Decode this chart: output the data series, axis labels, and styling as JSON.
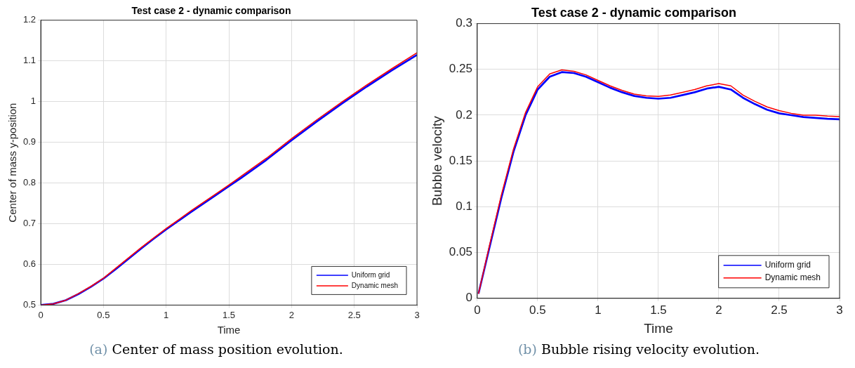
{
  "chart_data": [
    {
      "type": "line",
      "title": "Test case 2 - dynamic comparison",
      "xlabel": "Time",
      "ylabel": "Center of mass y-position",
      "annotations": [
        "(a) Center of mass position evolution."
      ],
      "xlim": [
        0,
        3
      ],
      "xticks": [
        0,
        0.5,
        1,
        1.5,
        2,
        2.5,
        3
      ],
      "ylim": [
        0.5,
        1.2
      ],
      "yticks": [
        0.5,
        0.6,
        0.7,
        0.8,
        0.9,
        1,
        1.1,
        1.2
      ],
      "grid": true,
      "legend": "bottom right",
      "marker": "none",
      "line_style": "solid",
      "x": [
        0,
        0.1,
        0.2,
        0.3,
        0.4,
        0.5,
        0.6,
        0.7,
        0.8,
        0.9,
        1,
        1.2,
        1.4,
        1.5,
        1.6,
        1.8,
        2,
        2.2,
        2.4,
        2.5,
        2.6,
        2.8,
        3
      ],
      "series": [
        {
          "name": "Uniform grid",
          "color": "#0000ff",
          "values": [
            0.5,
            0.503,
            0.512,
            0.527,
            0.545,
            0.565,
            0.589,
            0.614,
            0.639,
            0.663,
            0.686,
            0.729,
            0.771,
            0.792,
            0.813,
            0.857,
            0.905,
            0.951,
            0.995,
            1.016,
            1.037,
            1.077,
            1.115
          ]
        },
        {
          "name": "Dynamic mesh",
          "color": "#ff0000",
          "values": [
            0.5,
            0.503,
            0.512,
            0.528,
            0.546,
            0.566,
            0.591,
            0.616,
            0.641,
            0.665,
            0.688,
            0.732,
            0.774,
            0.795,
            0.817,
            0.861,
            0.909,
            0.955,
            0.999,
            1.02,
            1.041,
            1.081,
            1.12
          ]
        }
      ]
    },
    {
      "type": "line",
      "title": "Test case 2 - dynamic comparison",
      "xlabel": "Time",
      "ylabel": "Bubble velocity",
      "annotations": [
        "(b) Bubble rising velocity evolution."
      ],
      "xlim": [
        0,
        3
      ],
      "xticks": [
        0,
        0.5,
        1,
        1.5,
        2,
        2.5,
        3
      ],
      "ylim": [
        0,
        0.3
      ],
      "yticks": [
        0,
        0.05,
        0.1,
        0.15,
        0.2,
        0.25,
        0.3
      ],
      "grid": true,
      "legend": "bottom right",
      "marker": "none",
      "line_style": "solid",
      "x": [
        0.01,
        0.1,
        0.2,
        0.3,
        0.4,
        0.5,
        0.6,
        0.7,
        0.8,
        0.9,
        1,
        1.1,
        1.2,
        1.3,
        1.4,
        1.5,
        1.6,
        1.7,
        1.8,
        1.9,
        2,
        2.1,
        2.2,
        2.3,
        2.4,
        2.5,
        2.6,
        2.7,
        2.8,
        2.9,
        3
      ],
      "series": [
        {
          "name": "Uniform grid",
          "color": "#0000ff",
          "values": [
            0.005,
            0.055,
            0.11,
            0.16,
            0.2,
            0.228,
            0.242,
            0.247,
            0.246,
            0.242,
            0.236,
            0.23,
            0.225,
            0.221,
            0.219,
            0.218,
            0.219,
            0.222,
            0.225,
            0.229,
            0.231,
            0.228,
            0.219,
            0.212,
            0.206,
            0.202,
            0.2,
            0.198,
            0.197,
            0.196,
            0.1955
          ]
        },
        {
          "name": "Dynamic mesh",
          "color": "#ff0000",
          "values": [
            0.005,
            0.057,
            0.113,
            0.163,
            0.203,
            0.231,
            0.245,
            0.2495,
            0.248,
            0.244,
            0.238,
            0.232,
            0.227,
            0.223,
            0.221,
            0.2205,
            0.222,
            0.225,
            0.228,
            0.232,
            0.2345,
            0.232,
            0.222,
            0.215,
            0.209,
            0.205,
            0.202,
            0.2,
            0.2,
            0.199,
            0.1985
          ]
        }
      ]
    }
  ]
}
